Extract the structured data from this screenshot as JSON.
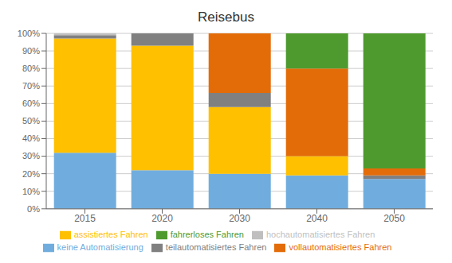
{
  "chart_data": {
    "type": "bar",
    "title": "Reisebus",
    "stacked": true,
    "categories": [
      "2015",
      "2020",
      "2030",
      "2040",
      "2050"
    ],
    "series": [
      {
        "name": "keine Automatisierung",
        "color": "#70ADDE",
        "values": [
          0.32,
          0.22,
          0.2,
          0.19,
          0.17
        ]
      },
      {
        "name": "assistiertes Fahren",
        "color": "#FFC000",
        "values": [
          0.65,
          0.71,
          0.38,
          0.11,
          0.0
        ]
      },
      {
        "name": "teilautomatisiertes Fahren",
        "color": "#808080",
        "values": [
          0.02,
          0.07,
          0.08,
          0.0,
          0.02
        ]
      },
      {
        "name": "hochautomatisiertes Fahren",
        "color": "#BFBFBF",
        "values": [
          0.01,
          0.0,
          0.0,
          0.0,
          0.0
        ]
      },
      {
        "name": "vollautomatisiertes Fahren",
        "color": "#E36C09",
        "values": [
          0.0,
          0.0,
          0.34,
          0.5,
          0.04
        ]
      },
      {
        "name": "fahrerloses Fahren",
        "color": "#4E9A2E",
        "values": [
          0.0,
          0.0,
          0.0,
          0.2,
          0.77
        ]
      }
    ],
    "ylim": [
      0,
      1.0
    ],
    "yticks": [
      {
        "value": 0,
        "label": "0%"
      },
      {
        "value": 0.1,
        "label": "10%"
      },
      {
        "value": 0.2,
        "label": "20%"
      },
      {
        "value": 0.3,
        "label": "30%"
      },
      {
        "value": 0.4,
        "label": "40%"
      },
      {
        "value": 0.5,
        "label": "50%"
      },
      {
        "value": 0.6,
        "label": "60%"
      },
      {
        "value": 0.7,
        "label": "70%"
      },
      {
        "value": 0.8,
        "label": "80%"
      },
      {
        "value": 0.9,
        "label": "90%"
      },
      {
        "value": 1.0,
        "label": "100%"
      }
    ],
    "grid": true,
    "legend": "bottom"
  }
}
